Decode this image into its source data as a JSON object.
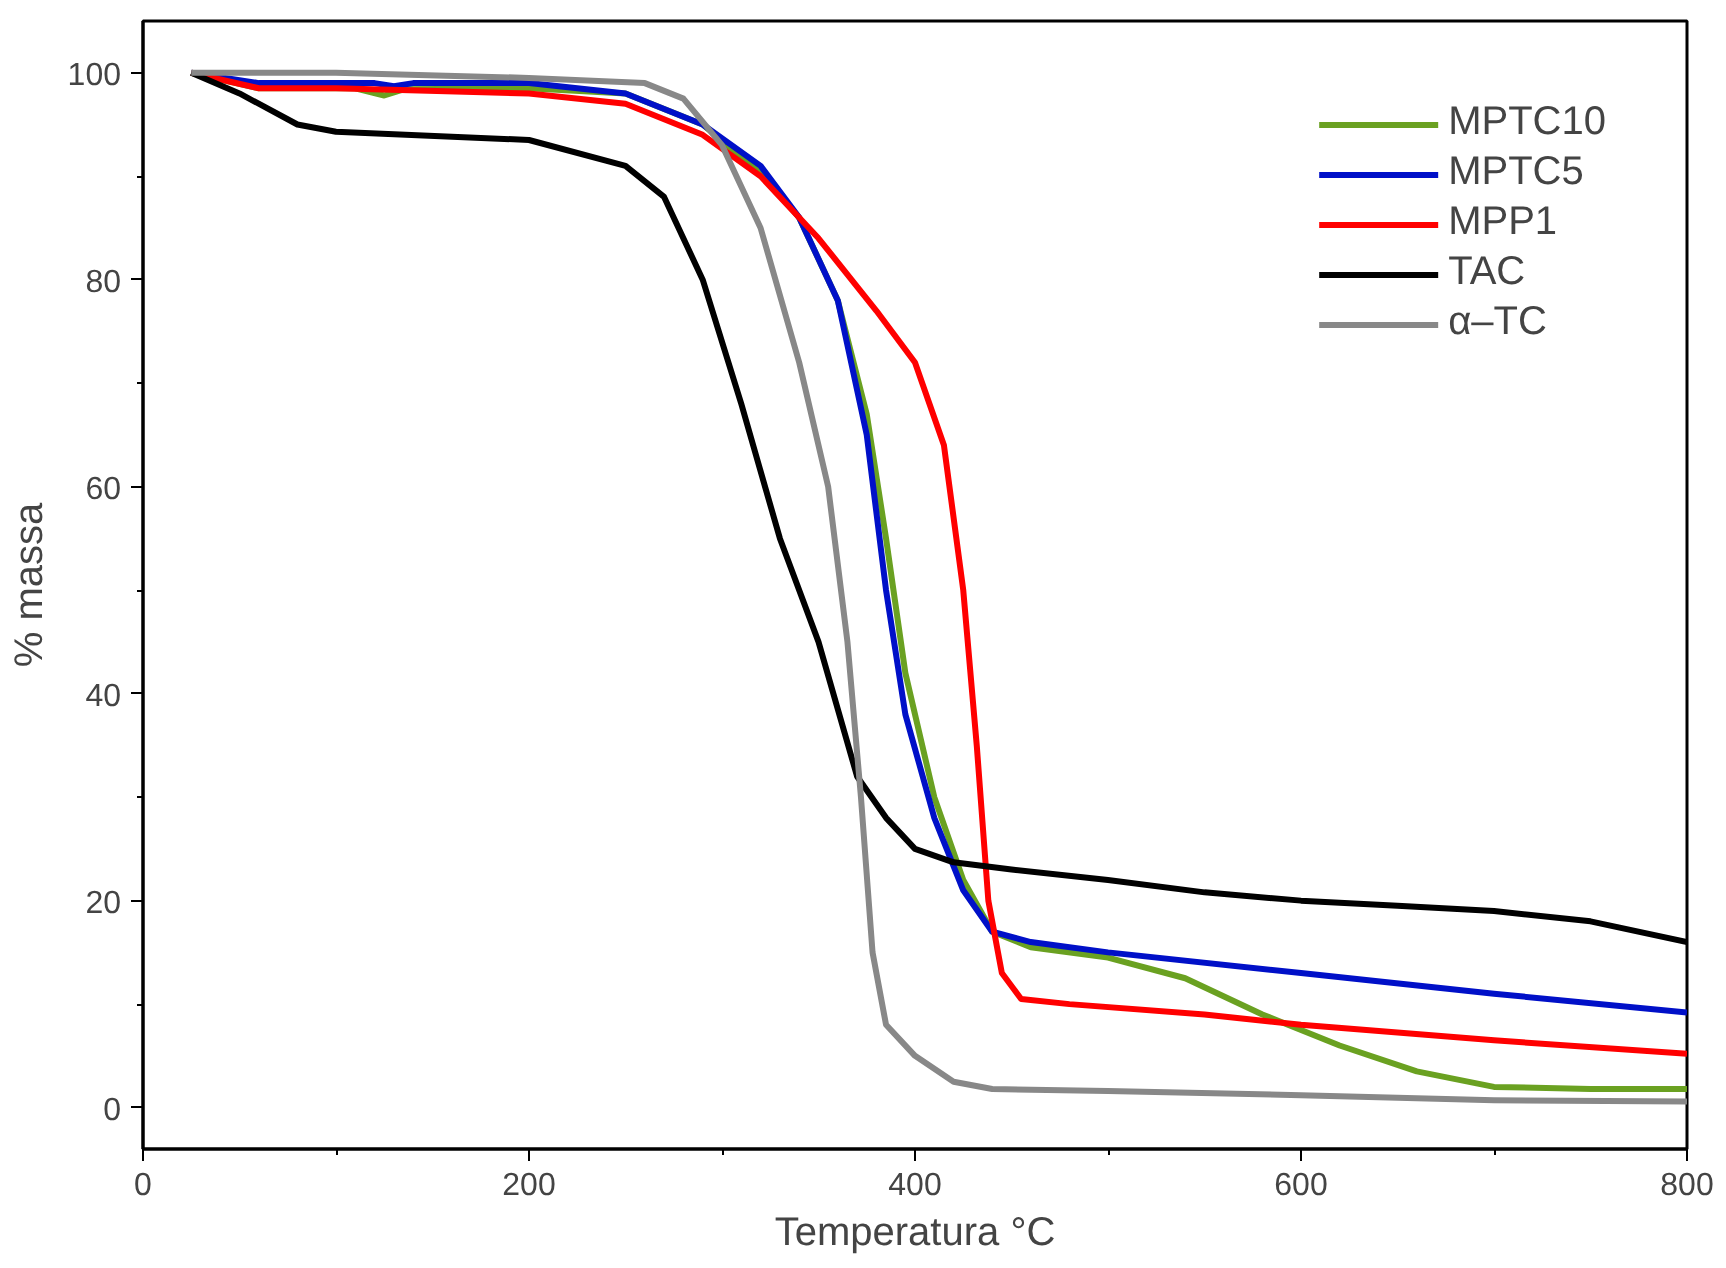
{
  "chart_data": {
    "type": "line",
    "xlabel": "Temperatura °C",
    "ylabel": "% massa",
    "xlim": [
      0,
      800
    ],
    "ylim": [
      -4,
      105
    ],
    "xticks": [
      0,
      200,
      400,
      600,
      800
    ],
    "yticks": [
      0,
      20,
      40,
      60,
      80,
      100
    ],
    "grid": false,
    "legend": "top right",
    "marker": "none",
    "line_style": "solid",
    "series": [
      {
        "name": "MPTC10",
        "color": "#6aa121",
        "x": [
          25,
          60,
          110,
          125,
          135,
          200,
          250,
          290,
          320,
          340,
          360,
          375,
          385,
          395,
          410,
          425,
          440,
          460,
          500,
          540,
          580,
          620,
          660,
          700,
          750,
          800
        ],
        "values": [
          100,
          98.5,
          98.5,
          97.8,
          98.4,
          98.5,
          98,
          95,
          90.3,
          86,
          78,
          67,
          55,
          42,
          30,
          22,
          17,
          15.5,
          14.5,
          12.5,
          9,
          6,
          3.5,
          2,
          1.8,
          1.8
        ]
      },
      {
        "name": "MPTC5",
        "color": "#0010c8",
        "x": [
          25,
          60,
          120,
          130,
          140,
          200,
          250,
          290,
          320,
          340,
          360,
          375,
          385,
          395,
          410,
          425,
          440,
          460,
          500,
          600,
          700,
          800
        ],
        "values": [
          100,
          99,
          99,
          98.7,
          99,
          99,
          98,
          95,
          91,
          86,
          78,
          65,
          50,
          38,
          28,
          21,
          17,
          16,
          15,
          13,
          11,
          9.2
        ]
      },
      {
        "name": "MPP1",
        "color": "#ff0000",
        "x": [
          25,
          60,
          100,
          200,
          250,
          290,
          320,
          350,
          380,
          400,
          415,
          425,
          432,
          438,
          445,
          455,
          480,
          550,
          600,
          700,
          800
        ],
        "values": [
          100,
          98.5,
          98.5,
          98,
          97,
          94,
          90,
          84,
          77,
          72,
          64,
          50,
          35,
          20,
          13,
          10.5,
          10,
          9,
          8,
          6.5,
          5.2
        ]
      },
      {
        "name": "TAC",
        "color": "#000000",
        "x": [
          25,
          50,
          80,
          100,
          200,
          250,
          270,
          290,
          310,
          330,
          350,
          370,
          385,
          400,
          420,
          450,
          500,
          550,
          600,
          650,
          700,
          750,
          800
        ],
        "values": [
          100,
          98,
          95,
          94.3,
          93.5,
          91,
          88,
          80,
          68,
          55,
          45,
          32,
          28,
          25,
          23.7,
          23,
          22,
          20.8,
          20,
          19.5,
          19,
          18,
          16
        ]
      },
      {
        "name": "α–TC",
        "color": "#888888",
        "x": [
          25,
          100,
          200,
          260,
          280,
          300,
          320,
          340,
          355,
          365,
          372,
          378,
          385,
          400,
          420,
          440,
          500,
          600,
          700,
          800
        ],
        "values": [
          100,
          100,
          99.5,
          99,
          97.5,
          93,
          85,
          72,
          60,
          45,
          30,
          15,
          8,
          5,
          2.5,
          1.8,
          1.6,
          1.2,
          0.7,
          0.6
        ]
      }
    ]
  }
}
